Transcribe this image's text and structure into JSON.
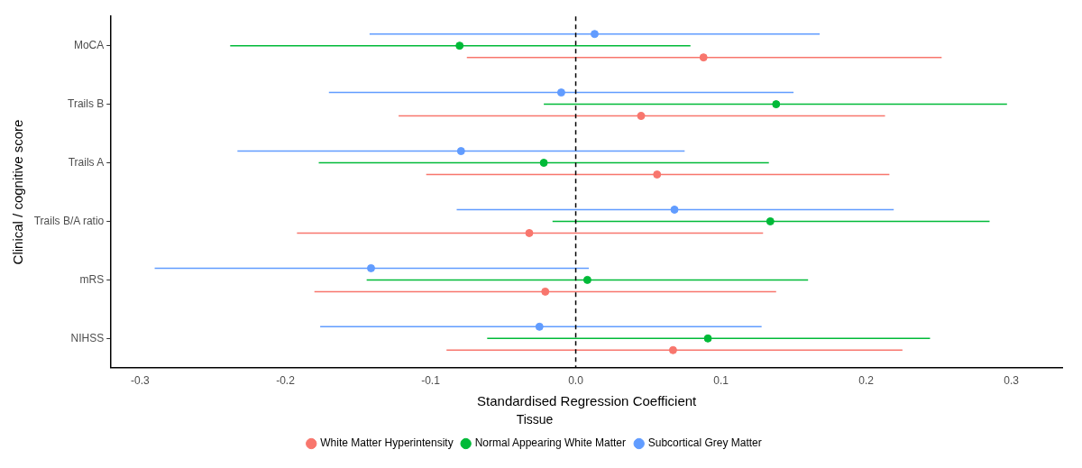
{
  "chart_data": {
    "type": "scatter",
    "orientation": "horizontal",
    "xlabel": "Standardised Regression Coefficient",
    "ylabel": "Clinical / cognitive score",
    "legend_title": "Tissue",
    "legend": "bottom",
    "grid": false,
    "marker": "circle",
    "categories": [
      "MoCA",
      "Trails B",
      "Trails A",
      "Trails B/A ratio",
      "mRS",
      "NIHSS"
    ],
    "xlim": [
      -0.32,
      0.335
    ],
    "xticks": [
      {
        "value": -0.3,
        "label": "-0.3"
      },
      {
        "value": -0.2,
        "label": "-0.2"
      },
      {
        "value": -0.1,
        "label": "-0.1"
      },
      {
        "value": 0,
        "label": "0.0"
      },
      {
        "value": 0.1,
        "label": "0.1"
      },
      {
        "value": 0.2,
        "label": "0.2"
      },
      {
        "value": 0.3,
        "label": "0.3"
      }
    ],
    "ref_lines": [
      {
        "axis": "x",
        "value": 0,
        "color": "#000000",
        "line_style": "dashed"
      }
    ],
    "series": [
      {
        "name": "White Matter Hyperintensity",
        "color": "#f8766d",
        "values": [
          0.088,
          0.045,
          0.056,
          -0.032,
          -0.021,
          0.067
        ],
        "errors": [
          [
            -0.075,
            0.252
          ],
          [
            -0.122,
            0.213
          ],
          [
            -0.103,
            0.216
          ],
          [
            -0.192,
            0.129
          ],
          [
            -0.18,
            0.138
          ],
          [
            -0.089,
            0.225
          ]
        ]
      },
      {
        "name": "Normal Appearing White Matter",
        "color": "#00ba38",
        "values": [
          -0.08,
          0.138,
          -0.022,
          0.134,
          0.008,
          0.091
        ],
        "errors": [
          [
            -0.238,
            0.079
          ],
          [
            -0.022,
            0.297
          ],
          [
            -0.177,
            0.133
          ],
          [
            -0.016,
            0.285
          ],
          [
            -0.144,
            0.16
          ],
          [
            -0.061,
            0.244
          ]
        ]
      },
      {
        "name": "Subcortical Grey Matter",
        "color": "#619cff",
        "values": [
          0.013,
          -0.01,
          -0.079,
          0.068,
          -0.141,
          -0.025
        ],
        "errors": [
          [
            -0.142,
            0.168
          ],
          [
            -0.17,
            0.15
          ],
          [
            -0.233,
            0.075
          ],
          [
            -0.082,
            0.219
          ],
          [
            -0.29,
            0.009
          ],
          [
            -0.176,
            0.128
          ]
        ]
      }
    ]
  }
}
